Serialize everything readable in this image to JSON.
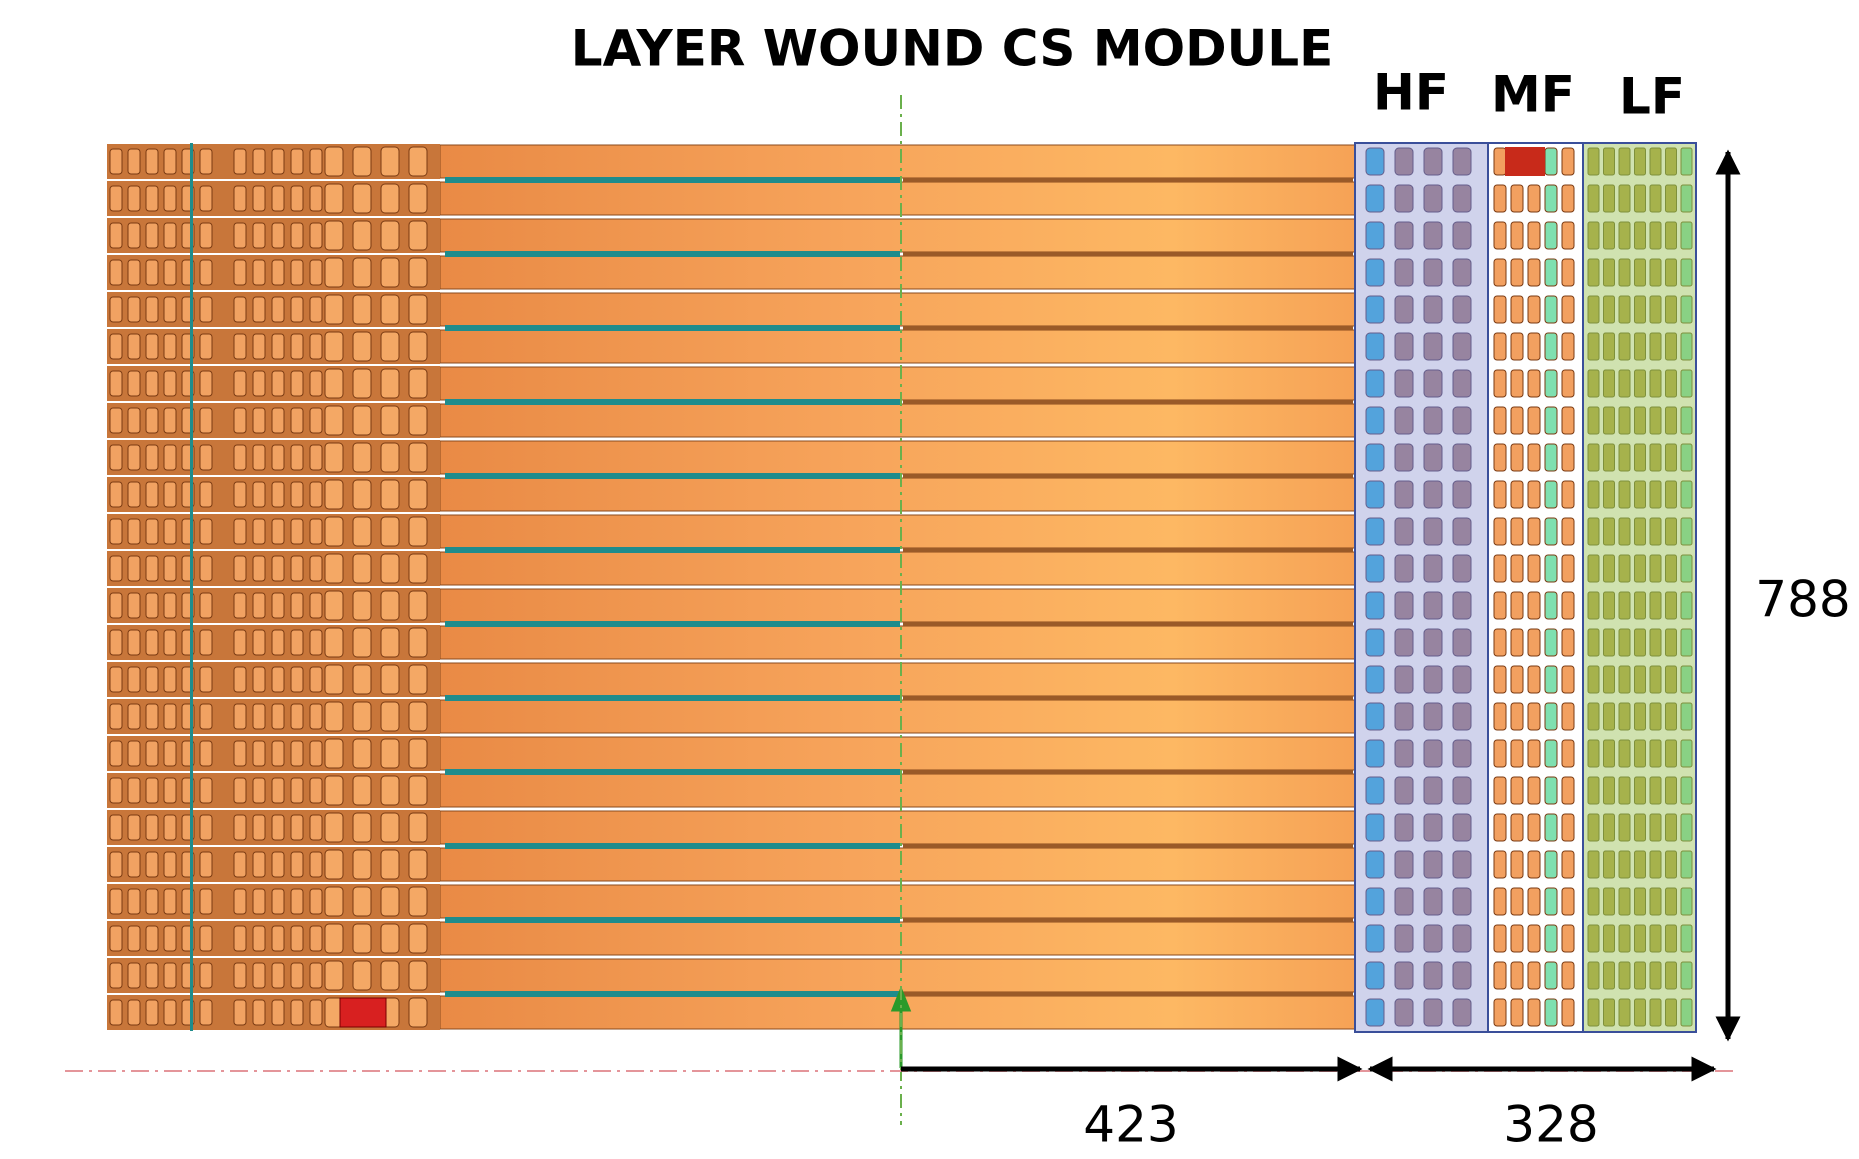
{
  "title": "LAYER WOUND CS MODULE",
  "sections": {
    "hf": "HF",
    "mf": "MF",
    "lf": "LF"
  },
  "dimensions": {
    "height": 788,
    "inner_width": 423,
    "outer_width": 328
  }
}
